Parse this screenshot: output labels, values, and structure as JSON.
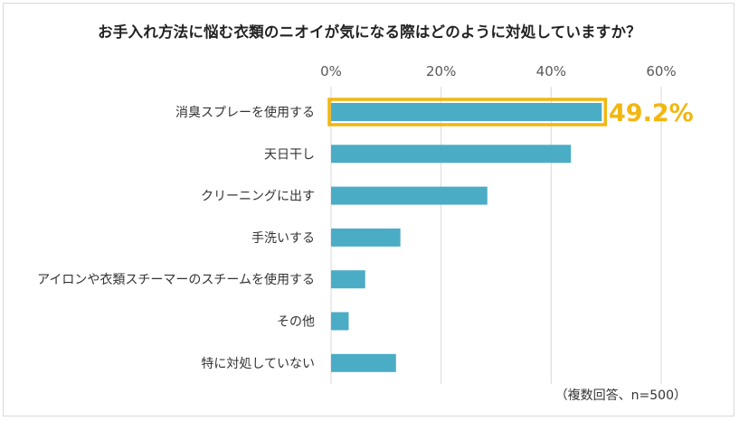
{
  "title": "お手入れ方法に悩む衣類のニオイが気になる際はどのように対処していますか？",
  "note": "（複数回答、n=500）",
  "highlight_label": "49.2%",
  "colors": {
    "bar": "#4bacc6",
    "highlight": "#f2b60f",
    "grid": "#d9d9d9"
  },
  "chart_data": {
    "type": "bar",
    "orientation": "horizontal",
    "title": "お手入れ方法に悩む衣類のニオイが気になる際はどのように対処していますか？",
    "xlabel": "",
    "ylabel": "",
    "xlim": [
      0,
      60
    ],
    "ticks": [
      "0%",
      "20%",
      "40%",
      "60%"
    ],
    "tick_values": [
      0,
      20,
      40,
      60
    ],
    "grid": true,
    "categories": [
      "消臭スプレーを使用する",
      "天日干し",
      "クリーニングに出す",
      "手洗いする",
      "アイロンや衣類スチーマーのスチームを使用する",
      "その他",
      "特に対処していない"
    ],
    "values": [
      49.2,
      43.6,
      28.4,
      12.6,
      6.2,
      3.2,
      11.8
    ],
    "highlighted_index": 0
  }
}
